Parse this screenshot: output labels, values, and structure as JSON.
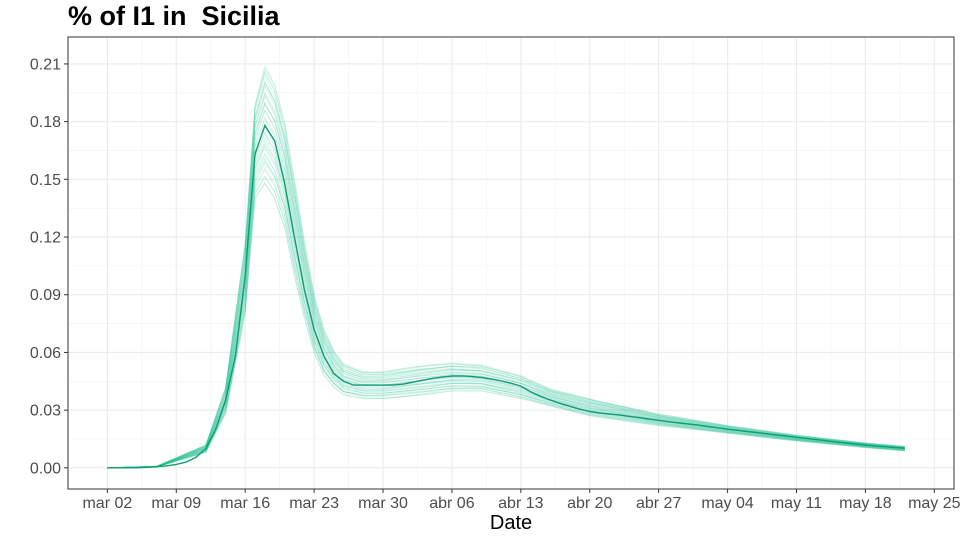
{
  "chart_data": {
    "type": "line",
    "title": "% of I1 in  Sicilia",
    "xlabel": "Date",
    "ylabel": "",
    "x_tick_labels": [
      "mar 02",
      "mar 09",
      "mar 16",
      "mar 23",
      "mar 30",
      "abr 06",
      "abr 13",
      "abr 20",
      "abr 27",
      "may 04",
      "may 11",
      "may 18",
      "may 25"
    ],
    "x_tick_days": [
      0,
      7,
      14,
      21,
      28,
      35,
      42,
      49,
      56,
      63,
      70,
      77,
      84
    ],
    "x_range_days": [
      -4,
      86
    ],
    "y_tick_labels": [
      "0.00",
      "0.03",
      "0.06",
      "0.09",
      "0.12",
      "0.15",
      "0.18",
      "0.21"
    ],
    "y_ticks": [
      0,
      0.03,
      0.06,
      0.09,
      0.12,
      0.15,
      0.18,
      0.21
    ],
    "ylim": [
      -0.011,
      0.224
    ],
    "grid": true,
    "color": "#1dbf8f",
    "median_color": "#119c74",
    "ensemble_runs": 40,
    "series": [
      {
        "role": "median",
        "x_days": [
          0,
          1,
          2,
          3,
          4,
          5,
          6,
          7,
          8,
          9,
          10,
          11,
          12,
          13,
          14,
          15,
          16,
          17,
          18,
          19,
          20,
          21,
          22,
          23,
          24,
          25,
          26,
          27,
          28,
          29,
          30,
          31,
          32,
          33,
          34,
          35,
          36,
          37,
          38,
          39,
          40,
          41,
          42,
          43,
          44,
          45,
          46,
          47,
          48,
          49,
          50,
          51,
          52,
          53,
          54,
          55,
          56,
          57,
          58,
          59,
          60,
          61,
          62,
          63,
          64,
          65,
          66,
          67,
          68,
          69,
          70,
          71,
          72,
          73,
          74,
          75,
          76,
          77,
          78,
          79,
          80,
          81
        ],
        "values": [
          0,
          0,
          0,
          0,
          0.0003,
          0.0006,
          0.001,
          0.0018,
          0.003,
          0.0055,
          0.01,
          0.02,
          0.035,
          0.058,
          0.1,
          0.163,
          0.178,
          0.17,
          0.148,
          0.12,
          0.093,
          0.072,
          0.058,
          0.049,
          0.045,
          0.043,
          0.043,
          0.043,
          0.043,
          0.043,
          0.0435,
          0.0445,
          0.0455,
          0.0465,
          0.0472,
          0.0477,
          0.0478,
          0.0475,
          0.047,
          0.0462,
          0.0452,
          0.044,
          0.0425,
          0.0395,
          0.0372,
          0.0352,
          0.0335,
          0.032,
          0.0305,
          0.0293,
          0.0285,
          0.028,
          0.0275,
          0.0268,
          0.0261,
          0.0254,
          0.0247,
          0.024,
          0.0234,
          0.0228,
          0.0222,
          0.0215,
          0.0208,
          0.0201,
          0.0195,
          0.0189,
          0.0183,
          0.0177,
          0.0171,
          0.0165,
          0.0159,
          0.0153,
          0.0147,
          0.0141,
          0.0135,
          0.0129,
          0.0124,
          0.0119,
          0.0114,
          0.011,
          0.0106,
          0.0102
        ]
      },
      {
        "role": "upper-band",
        "x_days": [
          0,
          5,
          10,
          12,
          14,
          15,
          16,
          17,
          18,
          19,
          20,
          21,
          22,
          23,
          24,
          26,
          28,
          32,
          35,
          38,
          42,
          45,
          49,
          56,
          63,
          70,
          77,
          81
        ],
        "values": [
          0,
          0.0008,
          0.012,
          0.042,
          0.118,
          0.19,
          0.21,
          0.2,
          0.18,
          0.15,
          0.118,
          0.09,
          0.072,
          0.061,
          0.054,
          0.05,
          0.05,
          0.053,
          0.0545,
          0.0535,
          0.048,
          0.041,
          0.036,
          0.028,
          0.022,
          0.017,
          0.013,
          0.0112
        ]
      },
      {
        "role": "lower-band",
        "x_days": [
          0,
          5,
          10,
          12,
          14,
          15,
          16,
          17,
          18,
          19,
          20,
          21,
          22,
          23,
          24,
          26,
          28,
          32,
          35,
          38,
          42,
          45,
          49,
          56,
          63,
          70,
          77,
          81
        ],
        "values": [
          0,
          0.0004,
          0.008,
          0.028,
          0.08,
          0.14,
          0.148,
          0.14,
          0.125,
          0.1,
          0.078,
          0.06,
          0.048,
          0.042,
          0.038,
          0.036,
          0.036,
          0.038,
          0.04,
          0.04,
          0.036,
          0.032,
          0.027,
          0.022,
          0.018,
          0.014,
          0.0105,
          0.0088
        ]
      }
    ]
  }
}
